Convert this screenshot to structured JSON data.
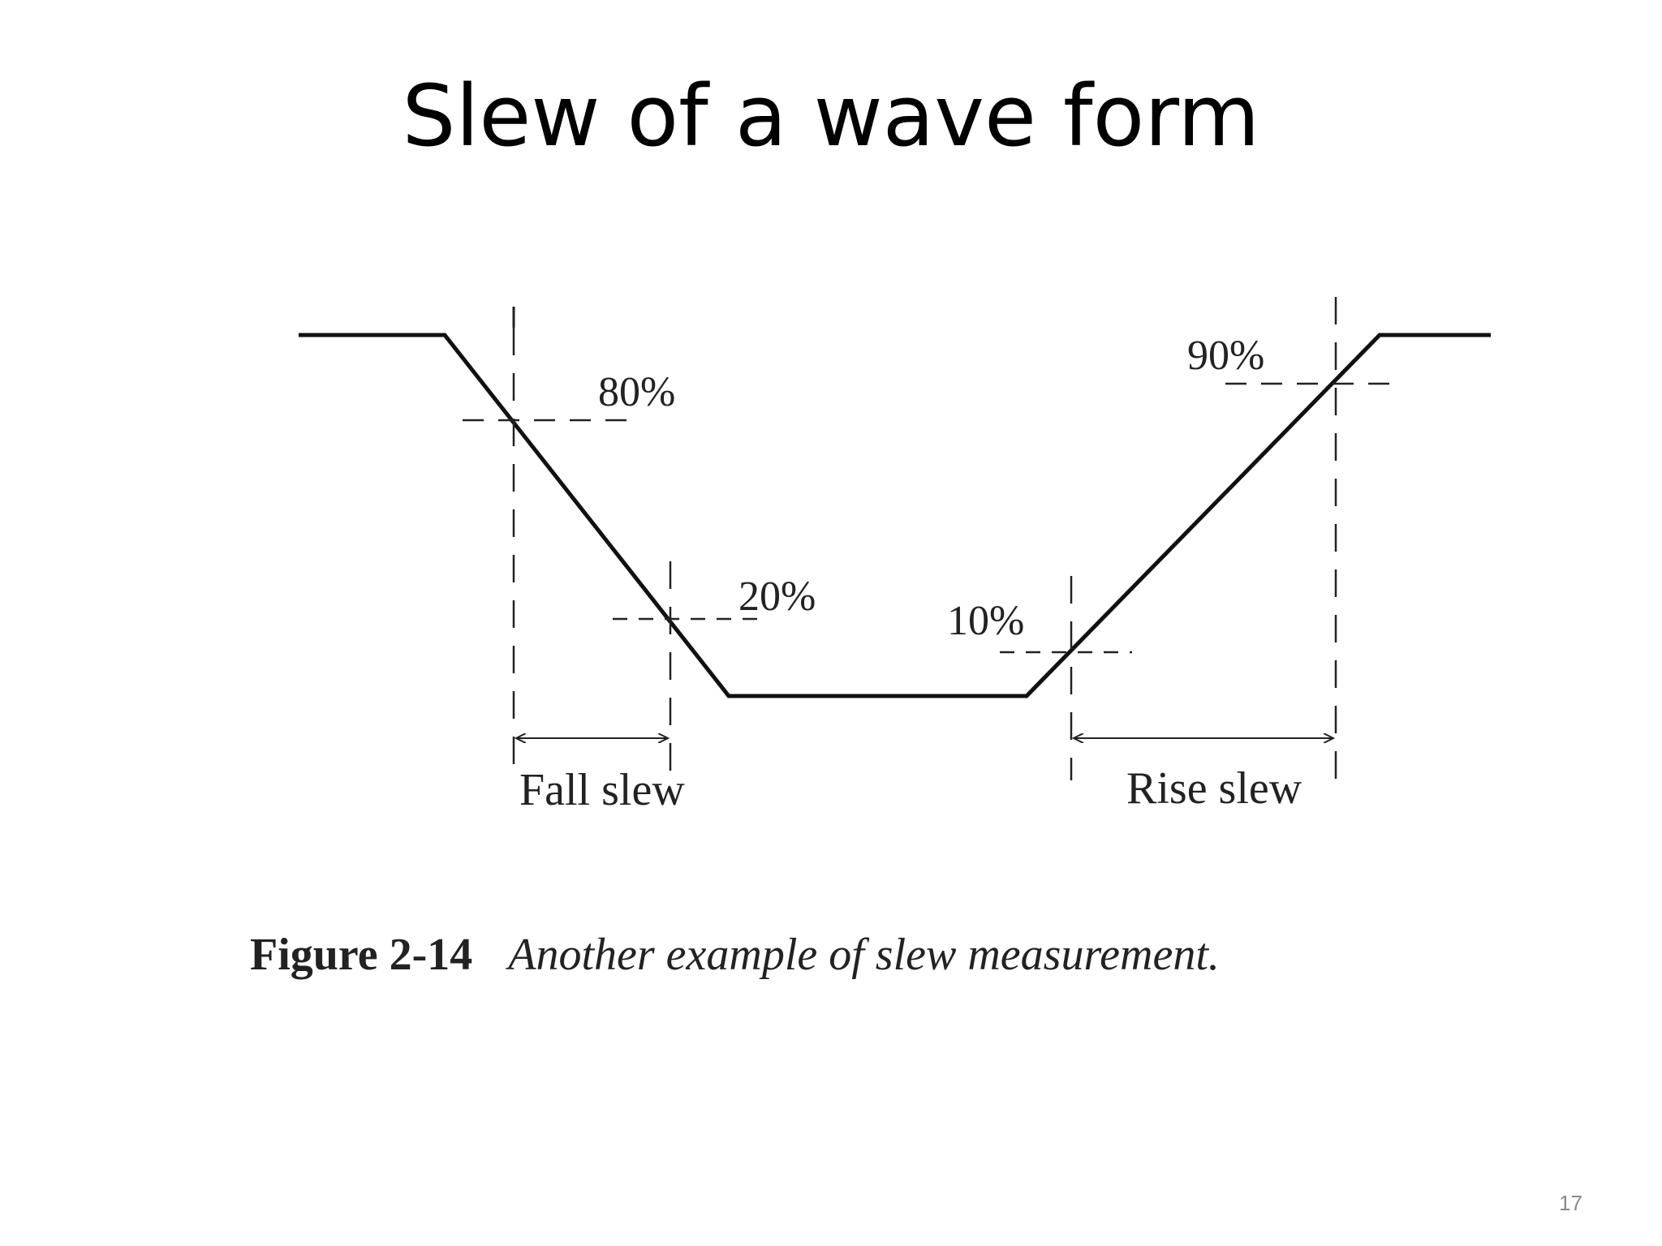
{
  "slide": {
    "title": "Slew of a wave form",
    "page_number": "17"
  },
  "diagram": {
    "labels": {
      "p80": "80%",
      "p20": "20%",
      "p10": "10%",
      "p90": "90%",
      "fall_slew": "Fall slew",
      "rise_slew": "Rise slew"
    },
    "caption": {
      "number": "Figure 2-14",
      "text": "Another example of slew measurement."
    }
  }
}
